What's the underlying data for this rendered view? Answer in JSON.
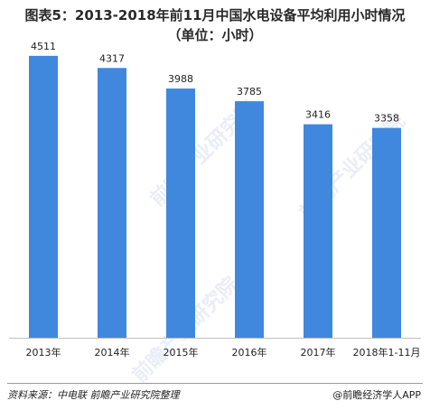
{
  "title": {
    "line1": "图表5：2013-2018年前11月中国水电设备平均利用小时情况",
    "line2": "（单位：小时）"
  },
  "chart_data": {
    "type": "bar",
    "categories": [
      "2013年",
      "2014年",
      "2015年",
      "2016年",
      "2017年",
      "2018年1-11月"
    ],
    "values": [
      4511,
      4317,
      3988,
      3785,
      3416,
      3358
    ],
    "data_labels": [
      "4511",
      "4317",
      "3988",
      "3785",
      "3416",
      "3358"
    ],
    "ylim": [
      0,
      5000
    ],
    "grid": false,
    "legend": "none",
    "bar_color": "#3f88de",
    "axis_color": "#bfbfbf"
  },
  "watermark": {
    "text": "前瞻产业研究院",
    "logo_glyph": "⊙"
  },
  "footer": {
    "source": "资料来源：中电联  前瞻产业研究院整理",
    "brand": "@前瞻经济学人APP"
  }
}
